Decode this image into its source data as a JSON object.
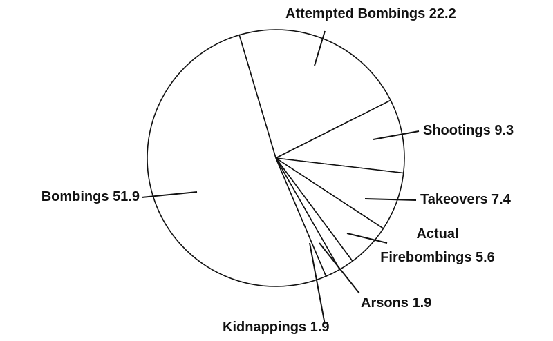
{
  "chart_data": {
    "type": "pie",
    "categories": [
      "Attempted Bombings",
      "Shootings",
      "Takeovers",
      "Actual Firebombings",
      "Arsons",
      "Kidnappings",
      "Bombings"
    ],
    "values": [
      22.2,
      9.3,
      7.4,
      5.6,
      1.9,
      1.9,
      51.9
    ],
    "color": "#ffffff"
  }
}
